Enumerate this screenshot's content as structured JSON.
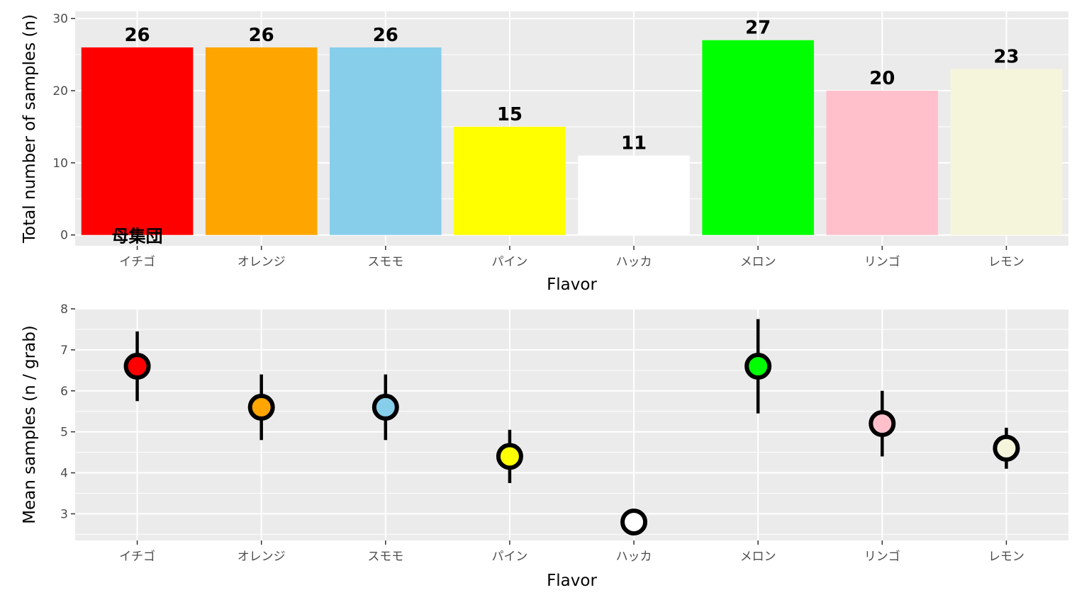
{
  "chart_data": [
    {
      "type": "bar",
      "categories": [
        "イチゴ",
        "オレンジ",
        "スモモ",
        "パイン",
        "ハッカ",
        "メロン",
        "リンゴ",
        "レモン"
      ],
      "values": [
        26,
        26,
        26,
        15,
        11,
        27,
        20,
        23
      ],
      "colors": [
        "#ff0000",
        "#ffa500",
        "#87ceeb",
        "#ffff00",
        "#ffffff",
        "#00ff00",
        "#ffc0cb",
        "#f5f5dc"
      ],
      "xlabel": "Flavor",
      "ylabel": "Total number of samples (n)",
      "ylim": [
        -1.5,
        31
      ],
      "yticks": [
        0,
        10,
        20,
        30
      ],
      "annotation": {
        "text": "母集団",
        "x": "イチゴ",
        "y": 0
      },
      "grid": true
    },
    {
      "type": "scatter",
      "subtype": "point-with-errorbars",
      "categories": [
        "イチゴ",
        "オレンジ",
        "スモモ",
        "パイン",
        "ハッカ",
        "メロン",
        "リンゴ",
        "レモン"
      ],
      "values": [
        6.6,
        5.6,
        5.6,
        4.4,
        2.8,
        6.6,
        5.2,
        4.6
      ],
      "error_low": [
        5.75,
        4.8,
        4.8,
        3.75,
        2.8,
        5.45,
        4.4,
        4.1
      ],
      "error_high": [
        7.45,
        6.4,
        6.4,
        5.05,
        2.8,
        7.75,
        6.0,
        5.1
      ],
      "colors": [
        "#ff0000",
        "#ffa500",
        "#87ceeb",
        "#ffff00",
        "#ffffff",
        "#00ff00",
        "#ffc0cb",
        "#f5f5dc"
      ],
      "xlabel": "Flavor",
      "ylabel": "Mean samples (n / grab)",
      "ylim": [
        2.35,
        8
      ],
      "yticks": [
        3,
        4,
        5,
        6,
        7,
        8
      ],
      "grid": true
    }
  ]
}
